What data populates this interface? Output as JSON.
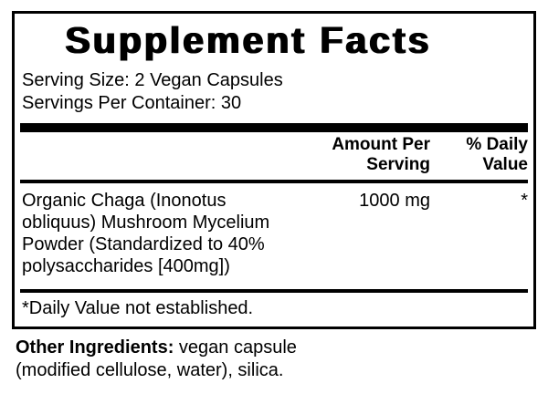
{
  "label": {
    "title": "Supplement Facts",
    "serving_size": "Serving Size: 2 Vegan Capsules",
    "servings_per_container": "Servings Per Container: 30",
    "header": {
      "amount": "Amount Per Serving",
      "daily_value": "% Daily Value"
    },
    "rows": [
      {
        "name": "Organic Chaga (Inonotus obliquus) Mushroom Mycelium Powder (Standardized to 40% polysaccharides [400mg])",
        "amount": "1000 mg",
        "daily_value": "*"
      }
    ],
    "footnote": "*Daily Value not established.",
    "other_ingredients_label": "Other Ingredients:",
    "other_ingredients_text": "vegan capsule (modified cellulose, water), silica."
  },
  "colors": {
    "text": "#000000",
    "background": "#ffffff",
    "rule": "#000000"
  }
}
